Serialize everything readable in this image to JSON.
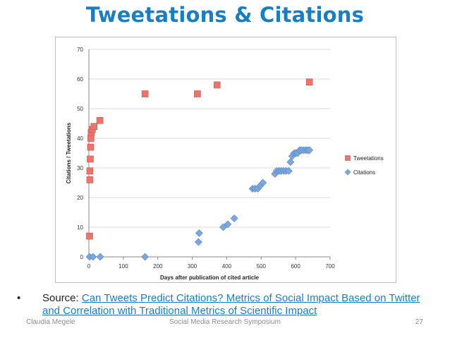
{
  "slide": {
    "title": "Tweetations & Citations",
    "source_label": "Source: ",
    "source_link": "Can Tweets Predict Citations? Metrics of Social Impact Based on Twitter and Correlation with Traditional Metrics of Scientific Impact",
    "footer_left": "Claudia Megele",
    "footer_center": "Social Media Research Symposium",
    "footer_right": "27",
    "link_color": "#1b7fbf"
  },
  "chart_data": {
    "type": "scatter",
    "title": "",
    "xlabel": "Days after publication of cited article",
    "ylabel": "Citations / Tweetations",
    "xlim": [
      0,
      700
    ],
    "ylim": [
      0,
      70
    ],
    "xticks": [
      0,
      100,
      200,
      300,
      400,
      500,
      600,
      700
    ],
    "yticks": [
      0,
      10,
      20,
      30,
      40,
      50,
      60,
      70
    ],
    "grid": "horizontal",
    "legend_position": "right",
    "series": [
      {
        "name": "Tweetations",
        "marker": "square",
        "color": "#e9756d",
        "points": [
          [
            2,
            7
          ],
          [
            3,
            26
          ],
          [
            3,
            29
          ],
          [
            4,
            33
          ],
          [
            5,
            37
          ],
          [
            6,
            40
          ],
          [
            7,
            42
          ],
          [
            10,
            43
          ],
          [
            15,
            44
          ],
          [
            32,
            46
          ],
          [
            163,
            55
          ],
          [
            315,
            55
          ],
          [
            372,
            58
          ],
          [
            640,
            59
          ]
        ]
      },
      {
        "name": "Citations",
        "marker": "diamond",
        "color": "#7ba7dc",
        "points": [
          [
            2,
            0
          ],
          [
            12,
            0
          ],
          [
            33,
            0
          ],
          [
            163,
            0
          ],
          [
            318,
            5
          ],
          [
            320,
            8
          ],
          [
            390,
            10
          ],
          [
            403,
            11
          ],
          [
            422,
            13
          ],
          [
            475,
            23
          ],
          [
            482,
            23
          ],
          [
            490,
            23
          ],
          [
            497,
            24
          ],
          [
            505,
            25
          ],
          [
            540,
            28
          ],
          [
            545,
            29
          ],
          [
            552,
            29
          ],
          [
            558,
            29
          ],
          [
            565,
            29
          ],
          [
            572,
            29
          ],
          [
            580,
            29
          ],
          [
            585,
            32
          ],
          [
            590,
            34
          ],
          [
            596,
            35
          ],
          [
            601,
            35
          ],
          [
            606,
            35
          ],
          [
            612,
            36
          ],
          [
            618,
            36
          ],
          [
            624,
            36
          ],
          [
            630,
            36
          ],
          [
            636,
            36
          ],
          [
            640,
            36
          ]
        ]
      }
    ]
  }
}
